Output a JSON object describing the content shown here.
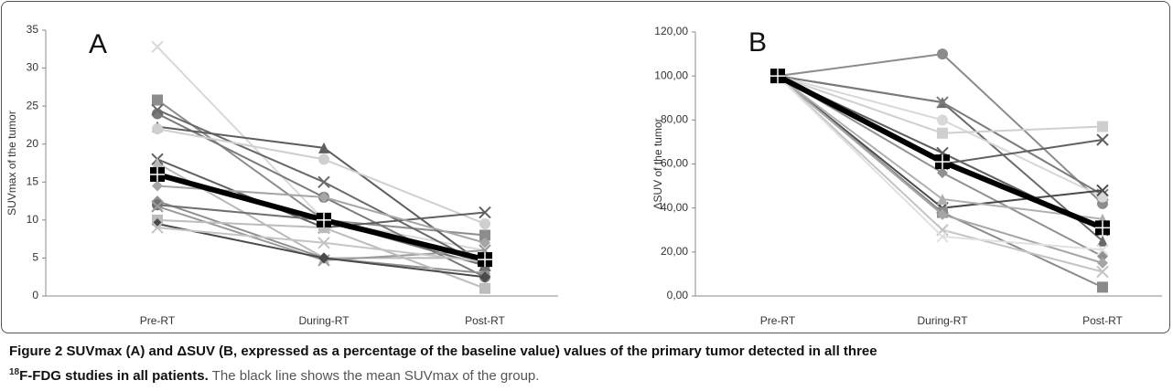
{
  "chart_data": [
    {
      "type": "line",
      "panel_label": "A",
      "ylabel": "SUVmax of the tumor",
      "categories": [
        "Pre-RT",
        "During-RT",
        "Post-RT"
      ],
      "ylim": [
        0,
        35
      ],
      "yticks": [
        0,
        5,
        10,
        15,
        20,
        25,
        30,
        35
      ],
      "grid": false,
      "series": [
        {
          "color": "#d8d8d8",
          "marker": "x",
          "values": [
            32.8,
            10,
            6
          ]
        },
        {
          "color": "#8c8c8c",
          "marker": "square",
          "values": [
            25.8,
            10,
            8
          ]
        },
        {
          "color": "#7a7a7a",
          "marker": "circle",
          "values": [
            24,
            13,
            2.5
          ]
        },
        {
          "color": "#6a6a6a",
          "marker": "x",
          "values": [
            24.5,
            15,
            4
          ]
        },
        {
          "color": "#5e5e5e",
          "marker": "triangle",
          "values": [
            22.3,
            19.5,
            4
          ]
        },
        {
          "color": "#cfcfcf",
          "marker": "circle",
          "values": [
            22,
            18,
            9.5
          ]
        },
        {
          "color": "#606060",
          "marker": "x",
          "values": [
            18,
            9,
            11
          ]
        },
        {
          "color": "#b8b8b8",
          "marker": "triangle",
          "values": [
            17.5,
            5,
            5
          ]
        },
        {
          "color": "#a6a6a6",
          "marker": "diamond",
          "values": [
            14.5,
            13,
            7
          ]
        },
        {
          "color": "#909090",
          "marker": "diamond",
          "values": [
            12.5,
            5,
            3
          ]
        },
        {
          "color": "#707070",
          "marker": "circle",
          "values": [
            12,
            10,
            4
          ]
        },
        {
          "color": "#9a9a9a",
          "marker": "x",
          "values": [
            11.8,
            4.7,
            6
          ]
        },
        {
          "color": "#bcbcbc",
          "marker": "square",
          "values": [
            10,
            9,
            1
          ]
        },
        {
          "color": "#4a4a4a",
          "marker": "diamond",
          "values": [
            9.5,
            5,
            2.5
          ]
        },
        {
          "color": "#c4c4c4",
          "marker": "x",
          "values": [
            9,
            7,
            4.5
          ]
        },
        {
          "color": "#000000",
          "marker": "mean",
          "width": 6,
          "values": [
            16,
            10,
            4.8
          ]
        }
      ]
    },
    {
      "type": "line",
      "panel_label": "B",
      "ylabel": "ΔSUV of the tumor",
      "categories": [
        "Pre-RT",
        "During-RT",
        "Post-RT"
      ],
      "ylim": [
        0,
        120
      ],
      "yticks": [
        {
          "value": 0,
          "label": "0,00"
        },
        {
          "value": 20,
          "label": "20,00"
        },
        {
          "value": 40,
          "label": "40,00"
        },
        {
          "value": 60,
          "label": "60,00"
        },
        {
          "value": 80,
          "label": "80,00"
        },
        {
          "value": 100,
          "label": "100,00"
        },
        {
          "value": 120,
          "label": "120,00"
        }
      ],
      "grid": false,
      "series": [
        {
          "color": "#8c8c8c",
          "marker": "circle",
          "values": [
            100,
            110,
            42
          ]
        },
        {
          "color": "#6a6a6a",
          "marker": "triangle",
          "values": [
            100,
            88,
            25
          ]
        },
        {
          "color": "#7a7a7a",
          "marker": "x",
          "values": [
            100,
            88,
            46
          ]
        },
        {
          "color": "#d8d8d8",
          "marker": "circle",
          "values": [
            100,
            80,
            45
          ]
        },
        {
          "color": "#cfcfcf",
          "marker": "square",
          "values": [
            100,
            74,
            77
          ]
        },
        {
          "color": "#5e5e5e",
          "marker": "x",
          "values": [
            100,
            65,
            30
          ]
        },
        {
          "color": "#606060",
          "marker": "x",
          "values": [
            100,
            60,
            71
          ]
        },
        {
          "color": "#909090",
          "marker": "diamond",
          "values": [
            100,
            56,
            18
          ]
        },
        {
          "color": "#4a4a4a",
          "marker": "x",
          "values": [
            100,
            40,
            48
          ]
        },
        {
          "color": "#8a8a8a",
          "marker": "square",
          "values": [
            100,
            38,
            4
          ]
        },
        {
          "color": "#a6a6a6",
          "marker": "diamond",
          "values": [
            100,
            37,
            15
          ]
        },
        {
          "color": "#c4c4c4",
          "marker": "x",
          "values": [
            100,
            30,
            11
          ]
        },
        {
          "color": "#e0e0e0",
          "marker": "x",
          "values": [
            100,
            27,
            21
          ]
        },
        {
          "color": "#b0b0b0",
          "marker": "triangle",
          "values": [
            100,
            44,
            35
          ]
        },
        {
          "color": "#000000",
          "marker": "mean",
          "width": 6,
          "values": [
            100,
            61,
            31
          ]
        }
      ]
    }
  ],
  "caption": {
    "label": "Figure 2",
    "bold_text": "SUVmax (A) and ΔSUV (B, expressed as a percentage of the baseline value) values of the primary tumor detected in all three",
    "superscript": "18",
    "bold_text_2": "F-FDG studies in all patients.",
    "text": "The black line shows the mean SUVmax of the group."
  }
}
